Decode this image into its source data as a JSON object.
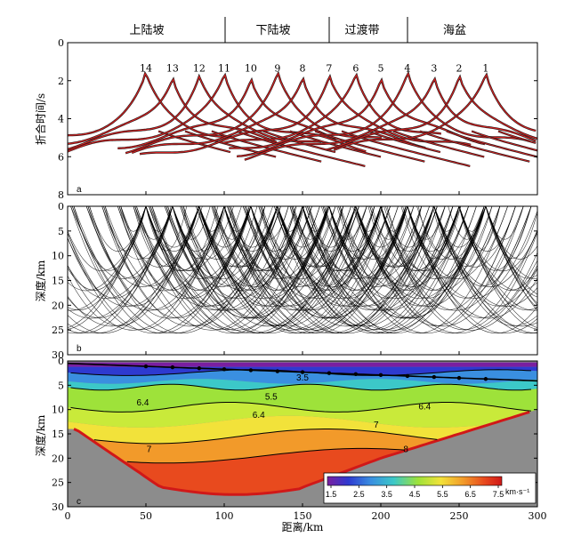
{
  "regions": [
    "上陆坡",
    "下陆坡",
    "过渡带",
    "海盆"
  ],
  "chart_data": [
    {
      "panel": "a",
      "type": "line",
      "ylabel": "折合时间/s",
      "ylim": [
        0,
        8
      ],
      "y_ticks": [
        "0",
        "2",
        "4",
        "6",
        "8"
      ],
      "xlim": [
        0,
        300
      ],
      "stations": [
        {
          "label": "14",
          "x": 50
        },
        {
          "label": "13",
          "x": 67
        },
        {
          "label": "12",
          "x": 84
        },
        {
          "label": "11",
          "x": 100
        },
        {
          "label": "10",
          "x": 117
        },
        {
          "label": "9",
          "x": 134
        },
        {
          "label": "8",
          "x": 150
        },
        {
          "label": "7",
          "x": 167
        },
        {
          "label": "6",
          "x": 184
        },
        {
          "label": "5",
          "x": 200
        },
        {
          "label": "4",
          "x": 217
        },
        {
          "label": "3",
          "x": 234
        },
        {
          "label": "2",
          "x": 250
        },
        {
          "label": "1",
          "x": 267
        }
      ],
      "apex_time": 1.8
    },
    {
      "panel": "b",
      "type": "line",
      "ylabel": "深度/km",
      "ylim": [
        0,
        30
      ],
      "y_ticks": [
        "0",
        "5",
        "10",
        "15",
        "20",
        "25",
        "30"
      ],
      "xlim": [
        0,
        300
      ]
    },
    {
      "panel": "c",
      "type": "heatmap",
      "ylabel": "深度/km",
      "xlabel": "距离/km",
      "xlim": [
        0,
        300
      ],
      "ylim": [
        0,
        30
      ],
      "x_ticks": [
        "0",
        "50",
        "100",
        "150",
        "200",
        "250",
        "300"
      ],
      "y_ticks": [
        "0",
        "5",
        "10",
        "15",
        "20",
        "25",
        "30"
      ],
      "contours": [
        {
          "label": "3.5",
          "x": 150,
          "y": 3.3
        },
        {
          "label": "5.5",
          "x": 130,
          "y": 7.2
        },
        {
          "label": "6.4",
          "x": 48,
          "y": 8.4
        },
        {
          "label": "6.4",
          "x": 122,
          "y": 11.0
        },
        {
          "label": "6.4",
          "x": 228,
          "y": 9.2
        },
        {
          "label": "7",
          "x": 52,
          "y": 18.0
        },
        {
          "label": "7",
          "x": 197,
          "y": 13.0
        },
        {
          "label": "8",
          "x": 216,
          "y": 18.0
        }
      ],
      "colorbar": {
        "ticks": [
          "1.5",
          "2.5",
          "3.5",
          "4.5",
          "5.5",
          "6.5",
          "7.5"
        ],
        "unit": "km·s⁻¹",
        "colors": [
          "#7a1fa0",
          "#2e3ad0",
          "#3a8fe0",
          "#3cc8c8",
          "#9ee23a",
          "#f2e23a",
          "#f29a2a",
          "#e84a1e",
          "#d01818"
        ]
      }
    }
  ]
}
